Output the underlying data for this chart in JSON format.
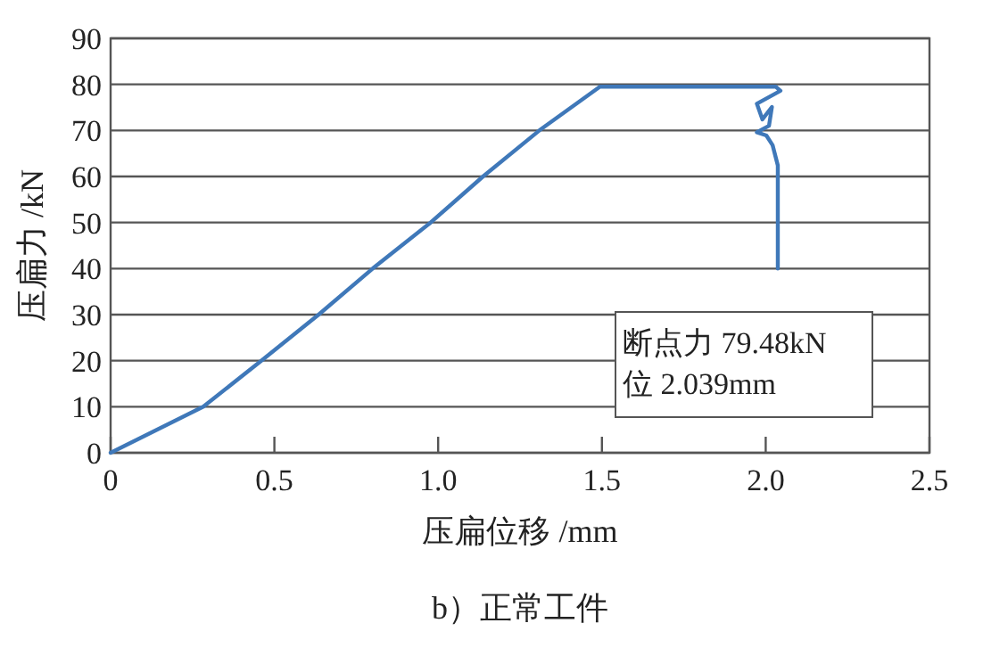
{
  "chart_data": {
    "type": "line",
    "title": "b）正常工件",
    "xlabel": "压扁位移 /mm",
    "ylabel": "压扁力 /kN",
    "x": [
      0,
      0.283,
      0.46,
      0.635,
      0.8,
      0.977,
      1.137,
      1.309,
      1.494,
      2.031,
      2.045,
      1.973,
      1.99,
      2.019,
      2.01,
      1.973,
      2.002,
      2.021,
      2.037,
      2.037
    ],
    "series": [
      {
        "color": "#3f78b9",
        "values": [
          0,
          10,
          20,
          30,
          40,
          50,
          60,
          70,
          79.5,
          79.5,
          78.6,
          75.8,
          72.4,
          75.1,
          71,
          69.6,
          68.9,
          66.8,
          62.4,
          40
        ]
      }
    ],
    "xlim": [
      0,
      2.5
    ],
    "ylim": [
      0,
      90
    ],
    "xticks": [
      {
        "value": 0,
        "label": "0"
      },
      {
        "value": 0.5,
        "label": "0.5"
      },
      {
        "value": 1,
        "label": "1.0"
      },
      {
        "value": 1.5,
        "label": "1.5"
      },
      {
        "value": 2,
        "label": "2.0"
      },
      {
        "value": 2.5,
        "label": "2.5"
      }
    ],
    "yticks": [
      0,
      10,
      20,
      30,
      40,
      50,
      60,
      70,
      80,
      90
    ],
    "grid": "y",
    "marker": "none",
    "line_style": "solid",
    "annotations": [
      "断点力 79.48kN",
      "位 2.039mm"
    ]
  }
}
